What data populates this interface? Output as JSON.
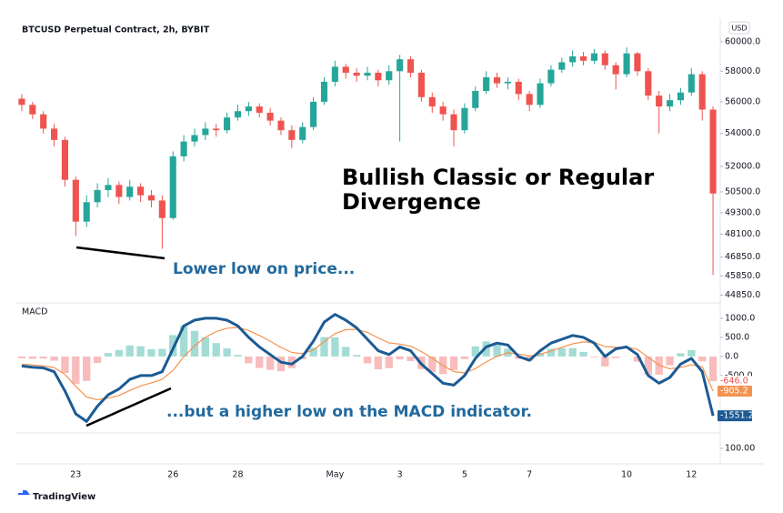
{
  "chart_data": [
    {
      "type": "candlestick",
      "title": "BTCUSD Perpetual Contract, 2h, BYBIT",
      "currency": "USD",
      "annotation_lines": [
        "Bullish Classic or Regular",
        "Divergence"
      ],
      "annotation": "Lower low on price...",
      "log_scale": true,
      "up_color": "#26a69a",
      "down_color": "#ef5350",
      "categories": [
        null,
        null,
        null,
        null,
        null,
        "23",
        null,
        null,
        null,
        null,
        null,
        null,
        null,
        null,
        "26",
        null,
        null,
        null,
        null,
        null,
        "28",
        null,
        null,
        null,
        null,
        null,
        null,
        null,
        null,
        "May",
        null,
        null,
        null,
        null,
        null,
        "3",
        null,
        null,
        null,
        null,
        null,
        "5",
        null,
        null,
        null,
        null,
        null,
        "7",
        null,
        null,
        null,
        null,
        null,
        null,
        null,
        null,
        "10",
        null,
        null,
        null,
        null,
        null,
        "12",
        null,
        null
      ],
      "open": [
        56200,
        55800,
        55200,
        54300,
        53600,
        51200,
        48800,
        49900,
        50600,
        50900,
        50200,
        50800,
        50300,
        50000,
        49000,
        52600,
        53500,
        53900,
        54300,
        54200,
        55000,
        55400,
        55700,
        55300,
        54800,
        54200,
        53600,
        54400,
        56000,
        57300,
        58300,
        57900,
        57700,
        57900,
        57400,
        58000,
        58800,
        57900,
        56300,
        55700,
        55200,
        54200,
        55600,
        56700,
        57600,
        57200,
        57300,
        56500,
        55800,
        57200,
        58100,
        58600,
        59000,
        58700,
        59200,
        58400,
        57800,
        59200,
        58000,
        56400,
        55700,
        56100,
        56600,
        57800,
        55500
      ],
      "high": [
        56500,
        56000,
        55400,
        54600,
        53800,
        51400,
        50300,
        51000,
        51300,
        51100,
        51200,
        51000,
        50600,
        50300,
        52900,
        53900,
        54300,
        54700,
        54600,
        55300,
        55800,
        56000,
        55900,
        55600,
        55000,
        54500,
        54700,
        56300,
        57600,
        58700,
        58500,
        58200,
        58300,
        58100,
        58400,
        59100,
        59000,
        58100,
        56600,
        56000,
        55500,
        55900,
        57000,
        58000,
        57900,
        57600,
        57500,
        56700,
        57500,
        58400,
        58900,
        59400,
        59300,
        59500,
        59400,
        58600,
        59600,
        59300,
        58200,
        56700,
        56500,
        56900,
        58200,
        58000,
        55700
      ],
      "low": [
        55400,
        54900,
        54000,
        53200,
        50800,
        48000,
        48500,
        49600,
        50200,
        49800,
        50000,
        49900,
        49600,
        47300,
        48900,
        52300,
        53200,
        53600,
        53800,
        54000,
        54800,
        55100,
        55000,
        54500,
        53900,
        53100,
        53400,
        54200,
        55800,
        57000,
        57500,
        57300,
        57400,
        57000,
        57100,
        53500,
        57600,
        56000,
        55300,
        54800,
        53200,
        54000,
        55400,
        56500,
        56900,
        56800,
        56100,
        55400,
        55600,
        57000,
        57900,
        58300,
        58400,
        58500,
        58100,
        56800,
        57600,
        57700,
        56100,
        54000,
        55400,
        55800,
        56400,
        54800,
        45900
      ],
      "close": [
        55800,
        55200,
        54300,
        53600,
        51200,
        48800,
        49900,
        50600,
        50900,
        50200,
        50800,
        50300,
        50000,
        49000,
        52600,
        53500,
        53900,
        54300,
        54200,
        55000,
        55400,
        55700,
        55300,
        54800,
        54200,
        53600,
        54400,
        56000,
        57300,
        58300,
        57900,
        57700,
        57900,
        57400,
        58000,
        58800,
        57900,
        56300,
        55700,
        55200,
        54200,
        55600,
        56700,
        57600,
        57200,
        57300,
        56500,
        55800,
        57200,
        58100,
        58600,
        59000,
        58700,
        59200,
        58400,
        57800,
        59200,
        58000,
        56400,
        55700,
        56100,
        56600,
        57800,
        55500,
        50400
      ],
      "ylim": [
        44500,
        61000
      ],
      "yticks": [
        {
          "value": 60000,
          "label": "60000.0"
        },
        {
          "value": 58000,
          "label": "58000.0"
        },
        {
          "value": 56000,
          "label": "56000.0"
        },
        {
          "value": 54000,
          "label": "54000.0"
        },
        {
          "value": 52000,
          "label": "52000.0"
        },
        {
          "value": 50500,
          "label": "50500.0"
        },
        {
          "value": 49300,
          "label": "49300.0"
        },
        {
          "value": 48100,
          "label": "48100.0"
        },
        {
          "value": 46850,
          "label": "46850.0"
        },
        {
          "value": 45850,
          "label": "45850.0"
        },
        {
          "value": 44850,
          "label": "44850.0"
        }
      ]
    },
    {
      "type": "macd",
      "title": "MACD",
      "annotation": "...but a higher low on the MACD indicator.",
      "macd": {
        "color": "#1c5a94",
        "values": [
          -250,
          -280,
          -300,
          -400,
          -900,
          -1500,
          -1700,
          -1300,
          -1000,
          -850,
          -600,
          -500,
          -500,
          -400,
          200,
          800,
          950,
          1000,
          1000,
          950,
          800,
          500,
          250,
          50,
          -150,
          -200,
          0,
          400,
          900,
          1100,
          950,
          750,
          450,
          150,
          50,
          250,
          150,
          -200,
          -450,
          -700,
          -750,
          -500,
          -50,
          250,
          350,
          300,
          0,
          -100,
          150,
          350,
          450,
          550,
          500,
          350,
          0,
          200,
          250,
          50,
          -500,
          -700,
          -550,
          -200,
          -50,
          -400,
          -1551.2
        ]
      },
      "signal": {
        "color": "#f5924e",
        "values": [
          -200,
          -220,
          -245,
          -290,
          -470,
          -780,
          -1060,
          -1130,
          -1090,
          -1020,
          -890,
          -770,
          -690,
          -600,
          -360,
          -10,
          280,
          500,
          650,
          740,
          760,
          680,
          550,
          400,
          235,
          105,
          75,
          170,
          390,
          600,
          700,
          710,
          630,
          485,
          355,
          325,
          270,
          130,
          -45,
          -240,
          -395,
          -430,
          -315,
          -145,
          5,
          95,
          65,
          15,
          55,
          145,
          235,
          330,
          380,
          370,
          260,
          240,
          245,
          185,
          -20,
          -225,
          -320,
          -285,
          -215,
          -270,
          -905.2
        ]
      },
      "histogram": {
        "up_color": "#a3dcd4",
        "down_color": "#f8bcbc",
        "values": [
          -50,
          -60,
          -55,
          -110,
          -430,
          -720,
          -640,
          -170,
          90,
          170,
          290,
          270,
          190,
          200,
          560,
          810,
          670,
          500,
          350,
          210,
          40,
          -180,
          -300,
          -350,
          -385,
          -305,
          -75,
          230,
          510,
          500,
          250,
          40,
          -180,
          -335,
          -305,
          -75,
          -120,
          -330,
          -405,
          -460,
          -355,
          -70,
          265,
          395,
          345,
          205,
          -65,
          -115,
          95,
          205,
          215,
          220,
          120,
          -20,
          -260,
          -40,
          5,
          -135,
          -480,
          -475,
          -230,
          85,
          165,
          -130,
          -646.0
        ],
        "value_labels": [
          null,
          null,
          null,
          null,
          null,
          null,
          null,
          null,
          null,
          null,
          null,
          null,
          null,
          null,
          null,
          null,
          null,
          null,
          null,
          null,
          null,
          null,
          null,
          null,
          null,
          null,
          null,
          null,
          null,
          null,
          null,
          null,
          null,
          null,
          null,
          null,
          null,
          null,
          null,
          null,
          null,
          null,
          null,
          null,
          null,
          null,
          null,
          null,
          null,
          null,
          null,
          null,
          null,
          null,
          null,
          null,
          null,
          null,
          null,
          null,
          null,
          null,
          null,
          null,
          "-646.0"
        ]
      },
      "ylim": [
        -2000,
        1330
      ],
      "yticks": [
        {
          "value": 1000,
          "label": "1000.0"
        },
        {
          "value": 500,
          "label": "500.0"
        },
        {
          "value": 0,
          "label": "0.0"
        },
        {
          "value": -500,
          "label": "-500.0"
        }
      ]
    },
    {
      "type": "pane",
      "ylim": [
        25,
        175
      ],
      "yticks": [
        {
          "value": 100,
          "label": "100.00"
        }
      ]
    }
  ],
  "footer": "TradingView"
}
